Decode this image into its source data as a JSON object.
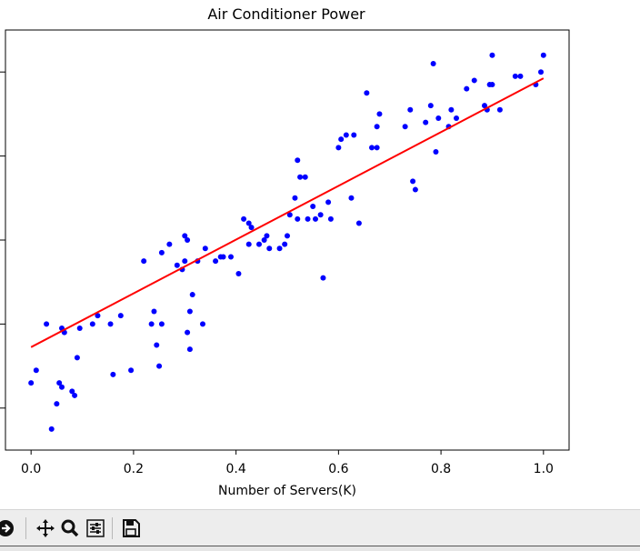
{
  "chart_data": {
    "type": "scatter",
    "title": "Air Conditioner Power",
    "xlabel": "Number of Servers(K)",
    "ylabel": "",
    "xlim": [
      -0.05,
      1.05
    ],
    "ylim": [
      0,
      1
    ],
    "xticks": [
      "0.0",
      "0.2",
      "0.4",
      "0.6",
      "0.8",
      "1.0"
    ],
    "grid": false,
    "legend": "none",
    "colors": {
      "points": "#0000ff",
      "fit_line": "#ff0000"
    },
    "series": [
      {
        "kind": "points",
        "x": [
          0.0,
          0.01,
          0.03,
          0.04,
          0.05,
          0.055,
          0.06,
          0.06,
          0.065,
          0.08,
          0.085,
          0.09,
          0.095,
          0.12,
          0.13,
          0.155,
          0.16,
          0.175,
          0.195,
          0.22,
          0.235,
          0.24,
          0.245,
          0.25,
          0.255,
          0.255,
          0.27,
          0.285,
          0.295,
          0.3,
          0.3,
          0.305,
          0.305,
          0.31,
          0.31,
          0.315,
          0.325,
          0.335,
          0.34,
          0.36,
          0.37,
          0.375,
          0.39,
          0.405,
          0.415,
          0.425,
          0.425,
          0.43,
          0.445,
          0.455,
          0.46,
          0.465,
          0.485,
          0.495,
          0.5,
          0.505,
          0.515,
          0.52,
          0.52,
          0.525,
          0.535,
          0.54,
          0.55,
          0.555,
          0.565,
          0.57,
          0.58,
          0.585,
          0.6,
          0.605,
          0.615,
          0.625,
          0.63,
          0.64,
          0.655,
          0.665,
          0.675,
          0.675,
          0.68,
          0.73,
          0.74,
          0.745,
          0.75,
          0.77,
          0.78,
          0.785,
          0.79,
          0.795,
          0.815,
          0.82,
          0.83,
          0.85,
          0.865,
          0.885,
          0.89,
          0.895,
          0.9,
          0.9,
          0.915,
          0.945,
          0.955,
          0.985,
          1.0,
          0.995
        ],
        "y": [
          0.16,
          0.19,
          0.3,
          0.05,
          0.11,
          0.16,
          0.15,
          0.29,
          0.28,
          0.14,
          0.13,
          0.22,
          0.29,
          0.3,
          0.32,
          0.3,
          0.18,
          0.32,
          0.19,
          0.45,
          0.3,
          0.33,
          0.25,
          0.2,
          0.3,
          0.47,
          0.49,
          0.44,
          0.43,
          0.45,
          0.51,
          0.5,
          0.28,
          0.33,
          0.24,
          0.37,
          0.45,
          0.3,
          0.48,
          0.45,
          0.46,
          0.46,
          0.46,
          0.42,
          0.55,
          0.54,
          0.49,
          0.53,
          0.49,
          0.5,
          0.51,
          0.48,
          0.48,
          0.49,
          0.51,
          0.56,
          0.6,
          0.55,
          0.69,
          0.65,
          0.65,
          0.55,
          0.58,
          0.55,
          0.56,
          0.41,
          0.59,
          0.55,
          0.72,
          0.74,
          0.75,
          0.6,
          0.75,
          0.54,
          0.85,
          0.72,
          0.77,
          0.72,
          0.8,
          0.77,
          0.81,
          0.64,
          0.62,
          0.78,
          0.82,
          0.92,
          0.71,
          0.79,
          0.77,
          0.81,
          0.79,
          0.86,
          0.88,
          0.82,
          0.81,
          0.87,
          0.94,
          0.87,
          0.81,
          0.89,
          0.89,
          0.87,
          0.94,
          0.9
        ]
      },
      {
        "kind": "fit_line",
        "x": [
          0.0,
          1.0
        ],
        "y": [
          0.245,
          0.885
        ]
      }
    ]
  },
  "toolbar": {
    "icons": [
      "forward-arrow-icon",
      "pan-icon",
      "zoom-icon",
      "configure-subplots-icon",
      "save-icon"
    ]
  }
}
